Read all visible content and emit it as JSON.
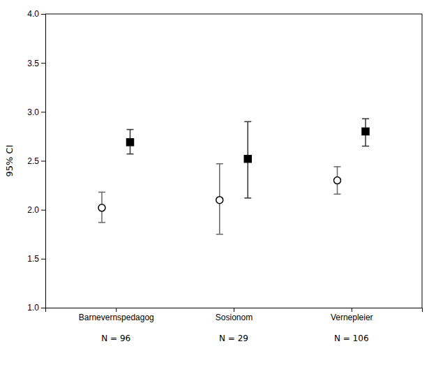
{
  "chart_data": {
    "type": "dot",
    "categories": [
      "Barnevernspedagog",
      "Sosionom",
      "Vernepleier"
    ],
    "annotations": [
      "N = 96",
      "N = 29",
      "N = 106"
    ],
    "ylabel": "95% CI",
    "series": [
      {
        "color": "#000000",
        "marker": "circle-open",
        "values": [
          2.02,
          2.1,
          2.3
        ],
        "ci_low": [
          1.87,
          1.75,
          2.16
        ],
        "ci_high": [
          2.18,
          2.47,
          2.44
        ]
      },
      {
        "color": "#000000",
        "marker": "square",
        "values": [
          2.69,
          2.52,
          2.8
        ],
        "ci_low": [
          2.57,
          2.12,
          2.65
        ],
        "ci_high": [
          2.82,
          2.9,
          2.93
        ]
      }
    ],
    "ylim": [
      1.0,
      4.0
    ],
    "yticks": [
      {
        "value": 1.0,
        "label": "1.0"
      },
      {
        "value": 1.5,
        "label": "1.5"
      },
      {
        "value": 2.0,
        "label": "2.0"
      },
      {
        "value": 2.5,
        "label": "2.5"
      },
      {
        "value": 3.0,
        "label": "3.0"
      },
      {
        "value": 3.5,
        "label": "3.5"
      },
      {
        "value": 4.0,
        "label": "4.0"
      }
    ],
    "grid": false
  }
}
